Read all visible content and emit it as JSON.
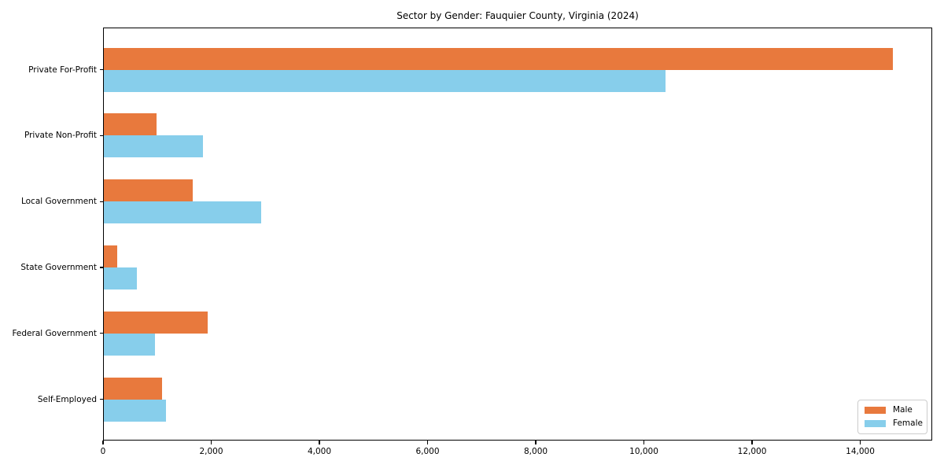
{
  "title": "Sector by Gender: Fauquier County, Virginia (2024)",
  "chart_data": {
    "type": "bar",
    "orientation": "horizontal",
    "title": "Sector by Gender: Fauquier County, Virginia (2024)",
    "categories": [
      "Private For-Profit",
      "Private Non-Profit",
      "Local Government",
      "State Government",
      "Federal Government",
      "Self-Employed"
    ],
    "series": [
      {
        "name": "Male",
        "color": "#e8793d",
        "values": [
          14600,
          990,
          1660,
          260,
          1940,
          1090
        ]
      },
      {
        "name": "Female",
        "color": "#87ceeb",
        "values": [
          10400,
          1840,
          2930,
          620,
          960,
          1160
        ]
      }
    ],
    "xlim": [
      0,
      15330
    ],
    "xticks": [
      0,
      2000,
      4000,
      6000,
      8000,
      10000,
      12000,
      14000
    ],
    "xtick_labels": [
      "0",
      "2,000",
      "4,000",
      "6,000",
      "8,000",
      "10,000",
      "12,000",
      "14,000"
    ],
    "xlabel": "",
    "ylabel": "",
    "grid": false,
    "legend_position": "lower right"
  }
}
